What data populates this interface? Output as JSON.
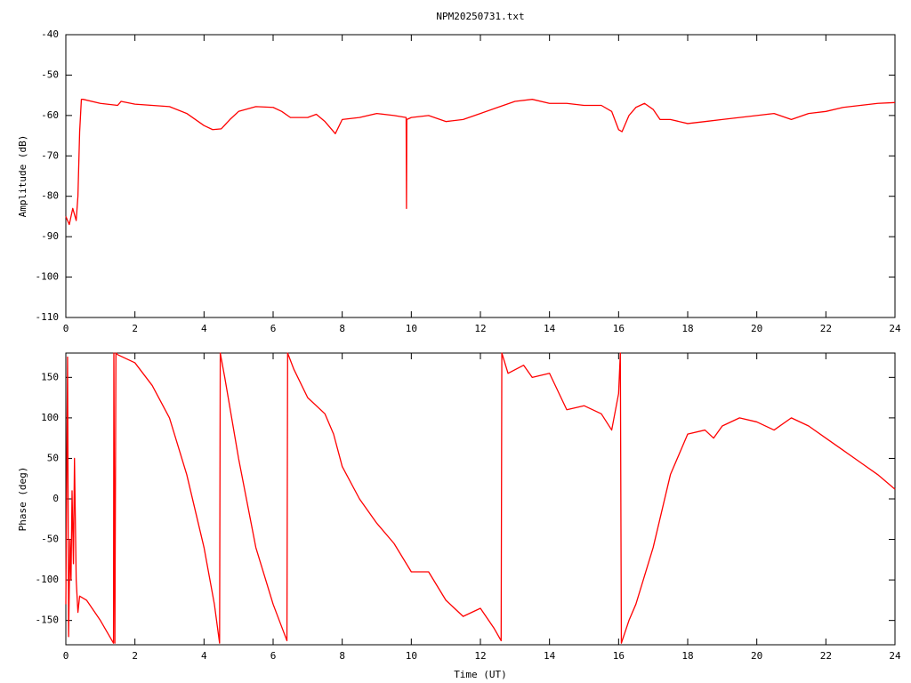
{
  "chart_data": [
    {
      "type": "line",
      "title": "NPM20250731.txt",
      "ylabel": "Amplitude (dB)",
      "color": "#ff0000",
      "xlim": [
        0,
        24
      ],
      "xticks": [
        0,
        2,
        4,
        6,
        8,
        10,
        12,
        14,
        16,
        18,
        20,
        22,
        24
      ],
      "ylim": [
        -110,
        -40
      ],
      "yticks": [
        -110,
        -100,
        -90,
        -80,
        -70,
        -60,
        -50,
        -40
      ],
      "x": [
        0,
        0.1,
        0.2,
        0.3,
        0.35,
        0.4,
        0.45,
        0.5,
        1.0,
        1.5,
        1.6,
        2,
        2.5,
        3,
        3.5,
        4,
        4.25,
        4.5,
        4.75,
        5,
        5.5,
        6,
        6.25,
        6.5,
        7,
        7.25,
        7.5,
        7.8,
        8,
        8.5,
        9,
        9.5,
        9.85,
        9.86,
        9.87,
        10,
        10.5,
        11,
        11.5,
        12,
        12.5,
        13,
        13.5,
        14,
        14.5,
        15,
        15.5,
        15.8,
        16,
        16.1,
        16.3,
        16.5,
        16.75,
        17,
        17.2,
        17.5,
        18,
        18.5,
        19,
        19.5,
        20,
        20.5,
        21,
        21.5,
        22,
        22.5,
        23,
        23.5,
        24
      ],
      "values": [
        -85,
        -87,
        -83,
        -86,
        -80,
        -64,
        -56,
        -56,
        -57,
        -57.5,
        -56.5,
        -57.2,
        -57.5,
        -57.8,
        -59.5,
        -62.5,
        -63.5,
        -63.3,
        -61,
        -59,
        -57.8,
        -58,
        -59,
        -60.5,
        -60.5,
        -59.7,
        -61.5,
        -64.5,
        -61,
        -60.5,
        -59.5,
        -60,
        -60.5,
        -83,
        -61,
        -60.5,
        -60,
        -61.5,
        -61,
        -59.5,
        -58,
        -56.5,
        -56,
        -57,
        -57,
        -57.5,
        -57.5,
        -59,
        -63.5,
        -64,
        -60,
        -58,
        -57,
        -58.5,
        -61,
        -61,
        -62,
        -61.5,
        -61,
        -60.5,
        -60,
        -59.5,
        -61,
        -59.5,
        -59,
        -58,
        -57.5,
        -57,
        -56.8
      ]
    },
    {
      "type": "line",
      "xlabel": "Time (UT)",
      "ylabel": "Phase (deg)",
      "color": "#ff0000",
      "xlim": [
        0,
        24
      ],
      "xticks": [
        0,
        2,
        4,
        6,
        8,
        10,
        12,
        14,
        16,
        18,
        20,
        22,
        24
      ],
      "ylim": [
        -180,
        180
      ],
      "yticks": [
        -150,
        -100,
        -50,
        0,
        50,
        100,
        150
      ],
      "x": [
        0,
        0.05,
        0.08,
        0.12,
        0.15,
        0.18,
        0.22,
        0.25,
        0.3,
        0.35,
        0.4,
        0.6,
        1.0,
        1.38,
        1.39,
        1.42,
        1.45,
        1.5,
        2,
        2.5,
        3,
        3.5,
        4,
        4.3,
        4.45,
        4.47,
        4.6,
        5,
        5.5,
        6,
        6.4,
        6.42,
        6.6,
        7,
        7.5,
        7.75,
        8,
        8.5,
        9,
        9.5,
        10,
        10.5,
        11,
        11.5,
        12,
        12.4,
        12.6,
        12.62,
        12.8,
        13.25,
        13.5,
        14,
        14.5,
        15,
        15.5,
        15.8,
        16,
        16.05,
        16.08,
        16.3,
        16.5,
        17,
        17.5,
        18,
        18.5,
        18.75,
        19,
        19.5,
        20,
        20.5,
        21,
        21.5,
        22,
        22.5,
        23,
        23.5,
        24
      ],
      "values": [
        -130,
        175,
        -170,
        -50,
        -100,
        10,
        -80,
        50,
        -100,
        -140,
        -120,
        -125,
        -150,
        -178,
        180,
        -178,
        180,
        178,
        168,
        140,
        100,
        30,
        -60,
        -130,
        -178,
        180,
        150,
        50,
        -60,
        -130,
        -175,
        180,
        160,
        125,
        105,
        80,
        40,
        0,
        -30,
        -55,
        -90,
        -90,
        -125,
        -145,
        -135,
        -160,
        -175,
        180,
        155,
        165,
        150,
        155,
        110,
        115,
        105,
        85,
        130,
        180,
        -178,
        -150,
        -130,
        -60,
        30,
        80,
        85,
        75,
        90,
        100,
        95,
        85,
        100,
        90,
        75,
        60,
        45,
        30,
        12
      ]
    }
  ]
}
